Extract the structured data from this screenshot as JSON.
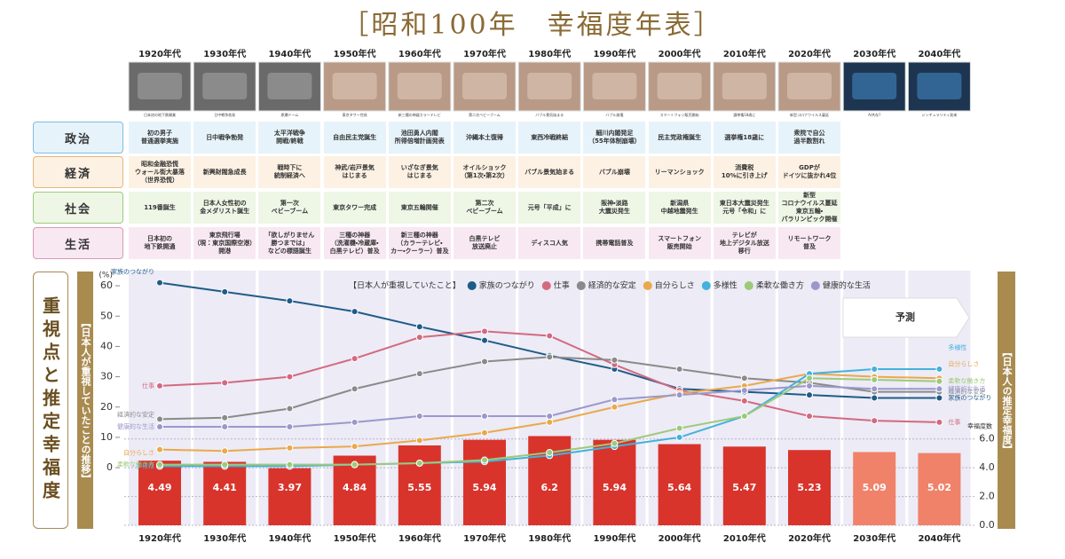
{
  "header": {
    "title": "［昭和100年　幸福度年表］"
  },
  "photos": [
    "日本初の地下鉄開業",
    "日中戦争勃発",
    "原爆ドーム",
    "東京タワー完成",
    "新三種の神器カラーテレビ",
    "第二次ベビーブーム",
    "バブル景気始まる",
    "バブル崩壊",
    "スマートフォン販売開始",
    "選挙権18歳に",
    "新型コロナウイルス蔓延",
    "AI共存?",
    "シンギュラリティ到来"
  ],
  "rows": [
    {
      "label": "政治",
      "color": "#7dbde0",
      "fill": "#e6f3fa",
      "cells": [
        "初の男子\n普通選挙実施",
        "日中戦争勃発",
        "太平洋戦争\n開戦/終戦",
        "自由民主党誕生",
        "池田勇人内閣\n所得倍増計画発表",
        "沖縄本土復帰",
        "東西冷戦終結",
        "細川内閣発足\n（55年体制崩壊）",
        "民主党政権誕生",
        "選挙権18歳に",
        "衆院で自公\n過半数割れ",
        null,
        null
      ]
    },
    {
      "label": "経済",
      "color": "#e6b77a",
      "fill": "#fcf1e3",
      "cells": [
        "昭和金融恐慌\nウォール街大暴落\n（世界恐慌）",
        "新興財閥急成長",
        "戦時下に\n統制経済へ",
        "神武/岩戸景気\nはじまる",
        "いざなぎ景気\nはじまる",
        "オイルショック\n（第1次・第2次）",
        "バブル景気始まる",
        "バブル崩壊",
        "リーマンショック",
        "消費税\n10%に引き上げ",
        "GDPが\nドイツに抜かれ4位",
        null,
        null
      ]
    },
    {
      "label": "社会",
      "color": "#9ccb7c",
      "fill": "#eef6e6",
      "cells": [
        "119番誕生",
        "日本人女性初の\n金メダリスト誕生",
        "第一次\nベビーブーム",
        "東京タワー完成",
        "東京五輪開催",
        "第二次\nベビーブーム",
        "元号「平成」に",
        "阪神・淡路\n大震災発生",
        "新潟県\n中越地震発生",
        "東日本大震災発生\n元号「令和」に",
        "新型\nコロナウイルス蔓延\n東京五輪・\nパラリンピック開催",
        null,
        null
      ]
    },
    {
      "label": "生活",
      "color": "#d79ab9",
      "fill": "#f8e8f1",
      "cells": [
        "日本初の\n地下鉄開通",
        "東京飛行場\n（現：東京国際空港）\n開港",
        "「欲しがりません\n勝つまでは」\nなどの標語誕生",
        "三種の神器\n（洗濯機・冷蔵庫・\n白黒テレビ）普及",
        "新三種の神器\n（カラーテレビ・\nカー・クーラー）普及",
        "白黒テレビ\n放送廃止",
        "ディスコ人気",
        "携帯電話普及",
        "スマートフォン\n販売開始",
        "テレビが\n地上デジタル放送\n移行",
        "リモートワーク\n普及",
        null,
        null
      ]
    }
  ],
  "chart_data": {
    "type": "line-bar",
    "side_title": "重視点と推定幸福度",
    "y_label": "【日本人が重視していたことの推移】",
    "y_unit": "(%)",
    "y2_label": "【日本人の推定幸福度】",
    "y2_unit": "幸福度数",
    "legend_title": "【日本人が重視していたこと】",
    "forecast_label": "予測",
    "categories": [
      "1920年代",
      "1930年代",
      "1940年代",
      "1950年代",
      "1960年代",
      "1970年代",
      "1980年代",
      "1990年代",
      "2000年代",
      "2010年代",
      "2020年代",
      "2030年代",
      "2040年代"
    ],
    "ylim": [
      -19,
      65
    ],
    "yticks": [
      0,
      10,
      20,
      30,
      40,
      50,
      60
    ],
    "y2lim": [
      0,
      17.7
    ],
    "y2ticks": [
      {
        "value": 0,
        "label": "0.0"
      },
      {
        "value": 2,
        "label": "2.0"
      },
      {
        "value": 4,
        "label": "4.0"
      },
      {
        "value": 6,
        "label": "6.0"
      }
    ],
    "grid": true,
    "happiness": {
      "name": "幸福度数",
      "axis": "y2",
      "values": [
        4.49,
        4.41,
        3.97,
        4.84,
        5.55,
        5.94,
        6.2,
        5.94,
        5.64,
        5.47,
        5.23,
        5.09,
        5.02
      ],
      "colors": [
        "#d8342c",
        "#d8342c",
        "#d8342c",
        "#d8342c",
        "#d8342c",
        "#d8342c",
        "#d8342c",
        "#d8342c",
        "#d8342c",
        "#d8342c",
        "#d8342c",
        "#f0826a",
        "#f0826a"
      ]
    },
    "series": [
      {
        "name": "家族のつながり",
        "color": "#1f5b87",
        "values": [
          61,
          58,
          55,
          51.5,
          46.5,
          42,
          37,
          32.5,
          26,
          25,
          24,
          23,
          23
        ]
      },
      {
        "name": "仕事",
        "color": "#d4697f",
        "values": [
          27,
          28,
          30,
          36,
          43,
          45,
          43.5,
          34,
          25.5,
          22,
          17,
          15.5,
          15
        ]
      },
      {
        "name": "経済的な安定",
        "color": "#8a8a8a",
        "values": [
          16,
          16.5,
          19.5,
          26,
          31,
          35,
          36.5,
          35.5,
          32.5,
          29.5,
          28,
          25,
          25
        ]
      },
      {
        "name": "自分らしさ",
        "color": "#eaa94a",
        "values": [
          6,
          5.5,
          6.5,
          7,
          9,
          11.5,
          15,
          20,
          24.5,
          27,
          31,
          30,
          29.5
        ]
      },
      {
        "name": "多様性",
        "color": "#45b1dc",
        "values": [
          0.5,
          0.5,
          0.5,
          1,
          1.5,
          2,
          4,
          7,
          10,
          17,
          31,
          32.5,
          32.5
        ]
      },
      {
        "name": "柔軟な働き方",
        "color": "#9dca78",
        "values": [
          1,
          1,
          1,
          1,
          1.5,
          2.5,
          5,
          8,
          13,
          17,
          29.5,
          29,
          28.5
        ]
      },
      {
        "name": "健康的な生活",
        "color": "#9a98cb",
        "values": [
          13.5,
          13.5,
          13.5,
          15,
          17,
          17,
          17,
          22.5,
          24,
          25.5,
          27,
          26,
          26
        ]
      }
    ]
  }
}
